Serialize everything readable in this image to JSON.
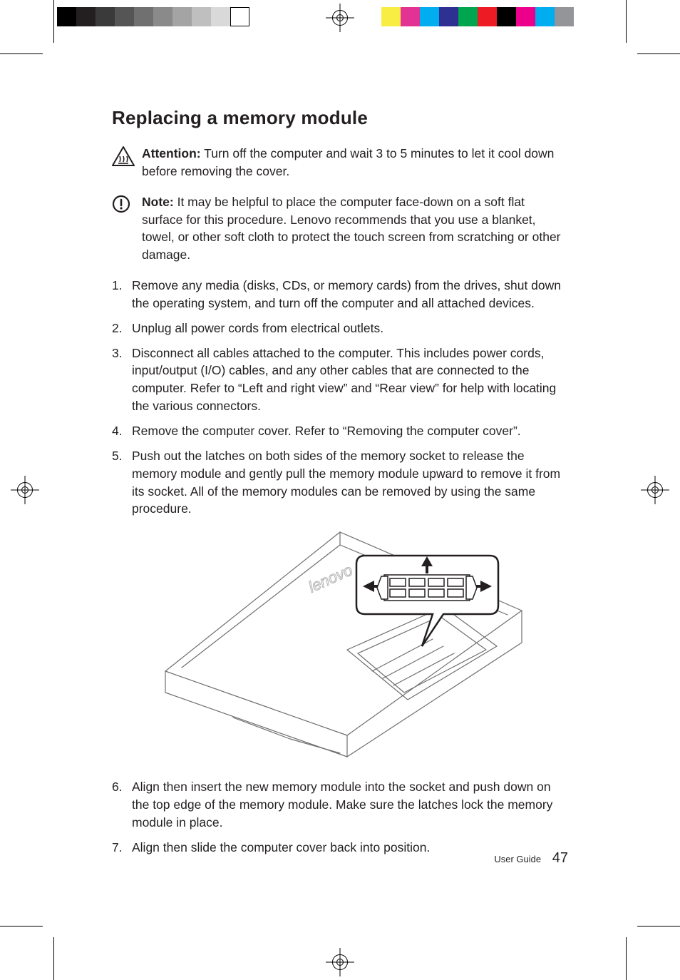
{
  "title": "Replacing a memory module",
  "callouts": {
    "attention": {
      "label": "Attention:",
      "text": "Turn off the computer and wait 3 to 5 minutes to let it cool down before removing the cover."
    },
    "note": {
      "label": "Note:",
      "text": "It may be helpful to place the computer face-down on a soft flat surface for this procedure. Lenovo recommends that you use a blanket, towel, or other soft cloth to protect the touch screen from scratching or other damage."
    }
  },
  "steps": [
    "Remove any media (disks, CDs, or memory cards) from the drives, shut down the operating system, and turn off the computer and all attached devices.",
    "Unplug all power cords from electrical outlets.",
    "Disconnect all cables attached to the computer. This includes power cords, input/output (I/O) cables, and any other cables that are connected to the computer. Refer to “Left and right view” and “Rear view” for help with locating the various connectors.",
    "Remove the computer cover. Refer to “Removing the computer cover”.",
    "Push out the latches on both sides of the memory socket to release the memory module and gently pull the memory module upward to remove it from its socket. All of the memory modules can be removed by using the same procedure.",
    "Align then insert the new memory module into the socket and push down on the top edge of the memory module. Make sure the latches lock the memory module in place.",
    "Align then slide the computer cover back into position."
  ],
  "figure_after_step": 5,
  "footer": {
    "label": "User Guide",
    "page": "47"
  },
  "colors": {
    "text": "#231f20",
    "bar_left": [
      "#000000",
      "#231f20",
      "#3a3a3a",
      "#555555",
      "#707070",
      "#8a8a8a",
      "#a4a4a4",
      "#bfbfbf",
      "#d9d9d9",
      "#ffffff"
    ],
    "bar_right": [
      "#f7ed43",
      "#e23293",
      "#00adee",
      "#2e3092",
      "#00a54f",
      "#ed1b24",
      "#000000",
      "#ec008b",
      "#00adee",
      "#939598"
    ]
  }
}
